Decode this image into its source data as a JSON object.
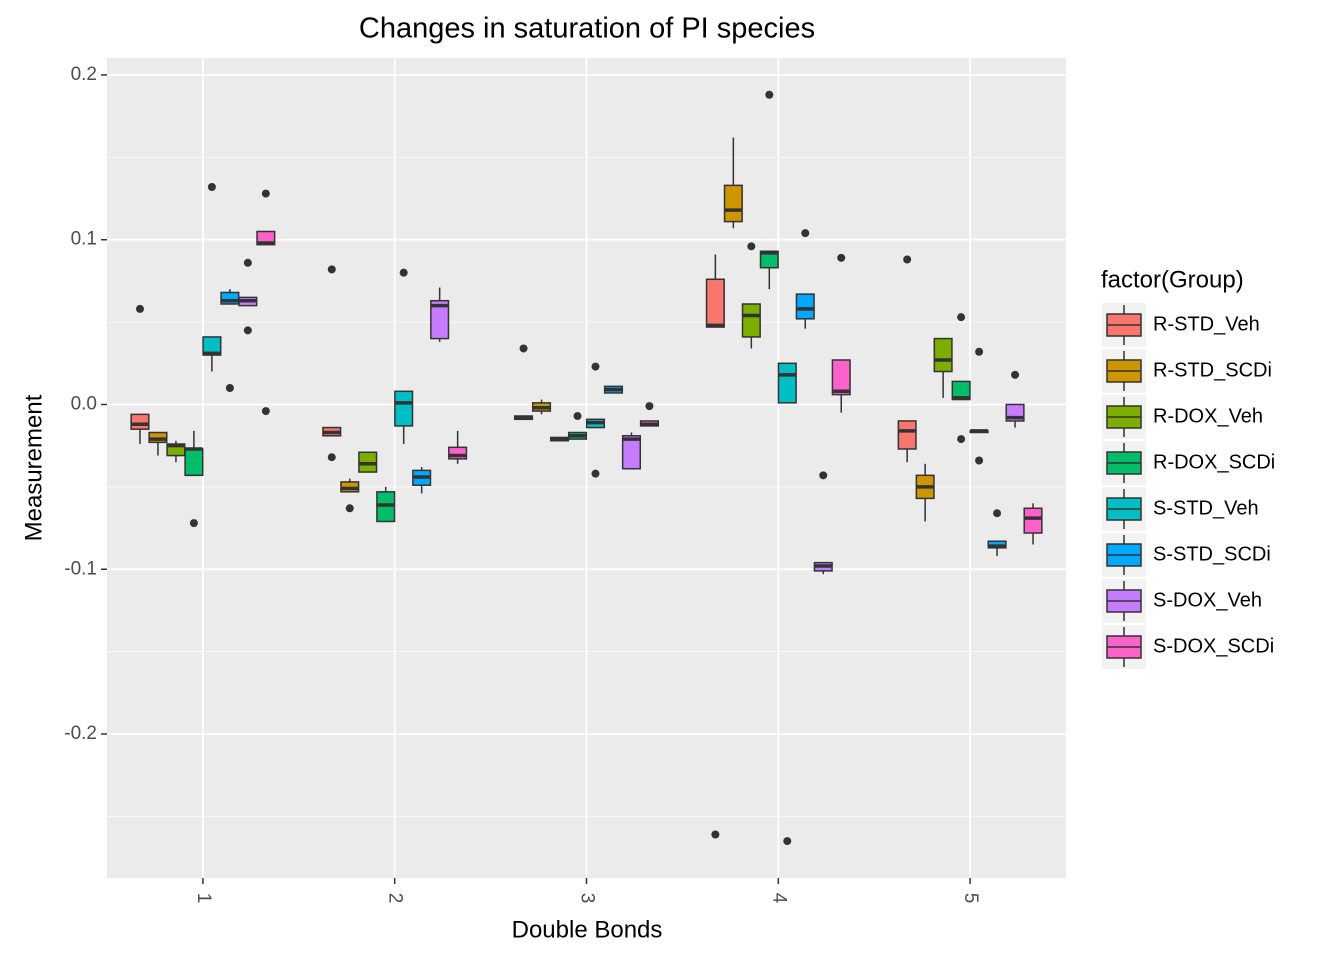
{
  "chart_data": {
    "type": "boxplot",
    "title": "Changes in saturation of PI species",
    "x_label": "Double Bonds",
    "y_label": "Measurement",
    "legend_title": "factor(Group)",
    "legend_position": "right",
    "grid": true,
    "categories": [
      "1",
      "2",
      "3",
      "4",
      "5"
    ],
    "ylim": [
      -0.2874,
      0.2103
    ],
    "yticks": [
      -0.2,
      -0.1,
      {
        "value": 0,
        "label": "0.0"
      },
      0.1,
      0.2
    ],
    "series": [
      {
        "name": "R-STD_Veh",
        "color": "#F8766D",
        "boxes": [
          {
            "low": -0.024,
            "q1": -0.015,
            "median": -0.012,
            "q3": -0.006,
            "high": -0.006,
            "outliers": [
              0.058
            ]
          },
          {
            "low": -0.019,
            "q1": -0.019,
            "median": -0.017,
            "q3": -0.014,
            "high": -0.014,
            "outliers": [
              0.082,
              -0.032
            ]
          },
          {
            "low": -0.009,
            "q1": -0.009,
            "median": -0.008,
            "q3": -0.007,
            "high": -0.007,
            "outliers": [
              0.034
            ]
          },
          {
            "low": 0.047,
            "q1": 0.047,
            "median": 0.048,
            "q3": 0.076,
            "high": 0.091,
            "outliers": [
              -0.261
            ]
          },
          {
            "low": -0.035,
            "q1": -0.027,
            "median": -0.016,
            "q3": -0.01,
            "high": -0.01,
            "outliers": [
              0.088
            ]
          }
        ]
      },
      {
        "name": "R-STD_SCDi",
        "color": "#CD9600",
        "boxes": [
          {
            "low": -0.031,
            "q1": -0.023,
            "median": -0.021,
            "q3": -0.017,
            "high": -0.017,
            "outliers": []
          },
          {
            "low": -0.053,
            "q1": -0.053,
            "median": -0.051,
            "q3": -0.047,
            "high": -0.045,
            "outliers": [
              -0.063
            ]
          },
          {
            "low": -0.006,
            "q1": -0.004,
            "median": -0.002,
            "q3": 0.001,
            "high": 0.003,
            "outliers": []
          },
          {
            "low": 0.107,
            "q1": 0.111,
            "median": 0.118,
            "q3": 0.133,
            "high": 0.162,
            "outliers": []
          },
          {
            "low": -0.071,
            "q1": -0.057,
            "median": -0.05,
            "q3": -0.043,
            "high": -0.036,
            "outliers": []
          }
        ]
      },
      {
        "name": "R-DOX_Veh",
        "color": "#7CAE00",
        "boxes": [
          {
            "low": -0.035,
            "q1": -0.031,
            "median": -0.025,
            "q3": -0.024,
            "high": -0.022,
            "outliers": []
          },
          {
            "low": -0.041,
            "q1": -0.041,
            "median": -0.036,
            "q3": -0.029,
            "high": -0.029,
            "outliers": []
          },
          {
            "low": -0.022,
            "q1": -0.022,
            "median": -0.021,
            "q3": -0.02,
            "high": -0.02,
            "outliers": []
          },
          {
            "low": 0.034,
            "q1": 0.041,
            "median": 0.054,
            "q3": 0.061,
            "high": 0.061,
            "outliers": [
              0.096
            ]
          },
          {
            "low": 0.004,
            "q1": 0.02,
            "median": 0.027,
            "q3": 0.04,
            "high": 0.04,
            "outliers": []
          }
        ]
      },
      {
        "name": "R-DOX_SCDi",
        "color": "#00BE67",
        "boxes": [
          {
            "low": -0.043,
            "q1": -0.043,
            "median": -0.027,
            "q3": -0.027,
            "high": -0.016,
            "outliers": [
              -0.072
            ]
          },
          {
            "low": -0.071,
            "q1": -0.071,
            "median": -0.061,
            "q3": -0.053,
            "high": -0.05,
            "outliers": []
          },
          {
            "low": -0.021,
            "q1": -0.021,
            "median": -0.019,
            "q3": -0.017,
            "high": -0.017,
            "outliers": [
              -0.007
            ]
          },
          {
            "low": 0.07,
            "q1": 0.083,
            "median": 0.092,
            "q3": 0.093,
            "high": 0.093,
            "outliers": [
              0.188
            ]
          },
          {
            "low": 0.003,
            "q1": 0.003,
            "median": 0.004,
            "q3": 0.014,
            "high": 0.014,
            "outliers": [
              0.053,
              -0.021
            ]
          }
        ]
      },
      {
        "name": "S-STD_Veh",
        "color": "#00BFC4",
        "boxes": [
          {
            "low": 0.02,
            "q1": 0.03,
            "median": 0.031,
            "q3": 0.041,
            "high": 0.041,
            "outliers": [
              0.132
            ]
          },
          {
            "low": -0.024,
            "q1": -0.013,
            "median": 0.001,
            "q3": 0.008,
            "high": 0.008,
            "outliers": [
              0.08
            ]
          },
          {
            "low": -0.014,
            "q1": -0.014,
            "median": -0.011,
            "q3": -0.009,
            "high": -0.009,
            "outliers": [
              0.023,
              -0.042
            ]
          },
          {
            "low": 0.001,
            "q1": 0.001,
            "median": 0.018,
            "q3": 0.025,
            "high": 0.025,
            "outliers": [
              -0.265
            ]
          },
          {
            "low": -0.017,
            "q1": -0.017,
            "median": -0.016,
            "q3": -0.016,
            "high": -0.016,
            "outliers": [
              0.032,
              -0.034
            ]
          }
        ]
      },
      {
        "name": "S-STD_SCDi",
        "color": "#00A9FF",
        "boxes": [
          {
            "low": 0.061,
            "q1": 0.061,
            "median": 0.063,
            "q3": 0.068,
            "high": 0.07,
            "outliers": [
              0.01
            ]
          },
          {
            "low": -0.054,
            "q1": -0.049,
            "median": -0.044,
            "q3": -0.04,
            "high": -0.038,
            "outliers": []
          },
          {
            "low": 0.007,
            "q1": 0.007,
            "median": 0.009,
            "q3": 0.011,
            "high": 0.011,
            "outliers": []
          },
          {
            "low": 0.046,
            "q1": 0.052,
            "median": 0.058,
            "q3": 0.067,
            "high": 0.067,
            "outliers": [
              0.104
            ]
          },
          {
            "low": -0.092,
            "q1": -0.087,
            "median": -0.086,
            "q3": -0.083,
            "high": -0.083,
            "outliers": [
              -0.066
            ]
          }
        ]
      },
      {
        "name": "S-DOX_Veh",
        "color": "#C77CFF",
        "boxes": [
          {
            "low": 0.06,
            "q1": 0.06,
            "median": 0.063,
            "q3": 0.065,
            "high": 0.065,
            "outliers": [
              0.086,
              0.045
            ]
          },
          {
            "low": 0.038,
            "q1": 0.04,
            "median": 0.06,
            "q3": 0.063,
            "high": 0.071,
            "outliers": []
          },
          {
            "low": -0.039,
            "q1": -0.039,
            "median": -0.021,
            "q3": -0.019,
            "high": -0.017,
            "outliers": []
          },
          {
            "low": -0.103,
            "q1": -0.101,
            "median": -0.098,
            "q3": -0.096,
            "high": -0.096,
            "outliers": [
              -0.043
            ]
          },
          {
            "low": -0.014,
            "q1": -0.01,
            "median": -0.008,
            "q3": 0.0,
            "high": 0.0,
            "outliers": [
              0.018
            ]
          }
        ]
      },
      {
        "name": "S-DOX_SCDi",
        "color": "#FF61CC",
        "boxes": [
          {
            "low": 0.097,
            "q1": 0.097,
            "median": 0.098,
            "q3": 0.105,
            "high": 0.105,
            "outliers": [
              0.128,
              -0.004
            ]
          },
          {
            "low": -0.036,
            "q1": -0.033,
            "median": -0.031,
            "q3": -0.026,
            "high": -0.016,
            "outliers": []
          },
          {
            "low": -0.013,
            "q1": -0.013,
            "median": -0.012,
            "q3": -0.01,
            "high": -0.01,
            "outliers": [
              -0.001
            ]
          },
          {
            "low": -0.005,
            "q1": 0.006,
            "median": 0.008,
            "q3": 0.027,
            "high": 0.027,
            "outliers": [
              0.089
            ]
          },
          {
            "low": -0.085,
            "q1": -0.078,
            "median": -0.069,
            "q3": -0.063,
            "high": -0.06,
            "outliers": []
          }
        ]
      }
    ]
  }
}
